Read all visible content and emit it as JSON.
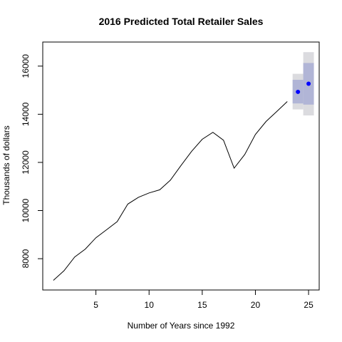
{
  "chart_data": {
    "type": "line",
    "title": "2016 Predicted Total Retailer Sales",
    "xlabel": "Number of Years since 1992",
    "ylabel": "Thousands of dollars",
    "xlim": [
      0,
      26
    ],
    "ylim": [
      6700,
      17000
    ],
    "x_ticks": [
      5,
      10,
      15,
      20,
      25
    ],
    "y_ticks": [
      8000,
      10000,
      12000,
      14000,
      16000
    ],
    "grid": false,
    "legend": "none",
    "series": [
      {
        "x": [
          1,
          2,
          3,
          4,
          5,
          6,
          7,
          8,
          9,
          10,
          11,
          12,
          13,
          14,
          15,
          16,
          17,
          18,
          19,
          20,
          21,
          22,
          23
        ],
        "values": [
          7100,
          7500,
          8070,
          8400,
          8870,
          9200,
          9540,
          10270,
          10550,
          10730,
          10860,
          11260,
          11870,
          12460,
          12960,
          13250,
          12920,
          11760,
          12330,
          13160,
          13700,
          14110,
          14530
        ],
        "color": "#000000"
      }
    ],
    "forecast": {
      "point_color": "#0000ff",
      "inner_band_color": "#b1b5d6",
      "outer_band_color": "#dbdbdf",
      "points": [
        {
          "x": 24,
          "value": 14930,
          "lo80": 14450,
          "hi80": 15430,
          "lo95": 14200,
          "hi95": 15680
        },
        {
          "x": 25,
          "value": 15270,
          "lo80": 14400,
          "hi80": 16130,
          "lo95": 13950,
          "hi95": 16580
        }
      ]
    }
  }
}
